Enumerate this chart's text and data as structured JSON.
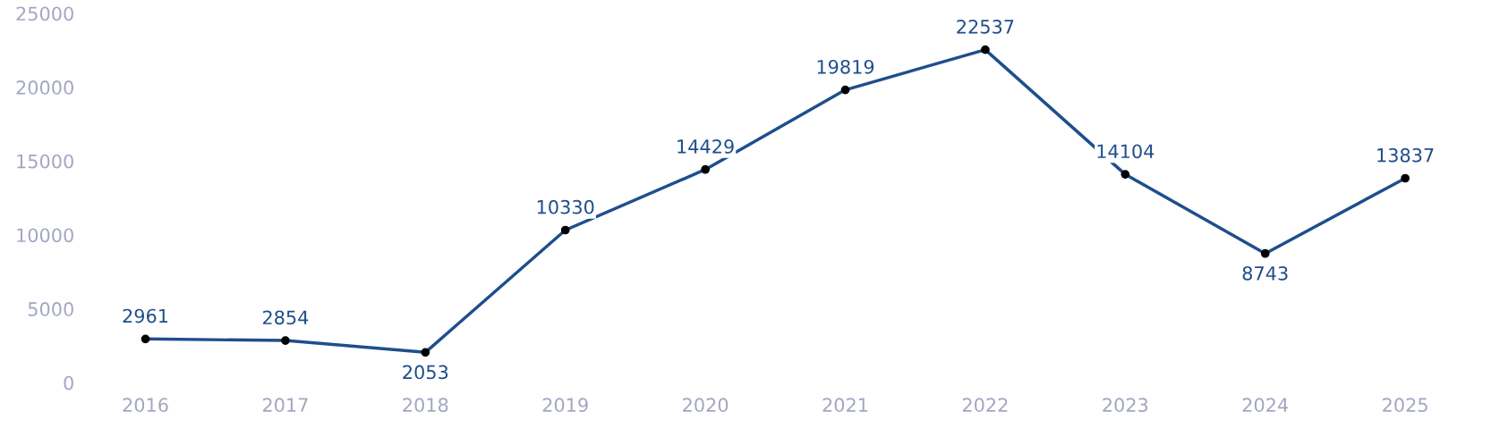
{
  "chart_data": {
    "type": "line",
    "categories": [
      "2016",
      "2017",
      "2018",
      "2019",
      "2020",
      "2021",
      "2022",
      "2023",
      "2024",
      "2025"
    ],
    "series": [
      {
        "color": "#1f4e8c",
        "values": [
          2961,
          2854,
          2053,
          10330,
          14429,
          19819,
          22537,
          14104,
          8743,
          13837
        ]
      }
    ],
    "ylim": [
      0,
      25000
    ],
    "yticks": [
      0,
      5000,
      10000,
      15000,
      20000,
      25000
    ],
    "grid": false,
    "marker": "circle",
    "line_style": "solid",
    "data_labels": true
  }
}
